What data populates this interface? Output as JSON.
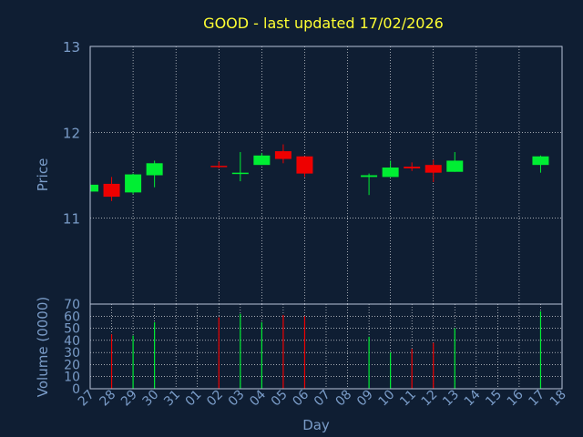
{
  "colors": {
    "background": "#0f1e33",
    "axis_text": "#7a9cc8",
    "title": "#ffff33",
    "grid": "#ffffff",
    "frame": "#b8c4d8",
    "up": "#00ee33",
    "down": "#ee0000"
  },
  "chart_data": [
    {
      "type": "candlestick",
      "title": "GOOD - last updated 17/02/2026",
      "ylabel": "Price",
      "ylim": [
        10.0,
        13.0
      ],
      "yticks": [
        11,
        12,
        13
      ],
      "grid": true,
      "x_labels": [
        "27",
        "28",
        "29",
        "30",
        "31",
        "01",
        "02",
        "03",
        "04",
        "05",
        "06",
        "07",
        "08",
        "09",
        "10",
        "11",
        "12",
        "13",
        "14",
        "15",
        "16",
        "17",
        "18"
      ],
      "candles": [
        {
          "x": "27",
          "open": 11.31,
          "close": 11.39,
          "high": 11.4,
          "low": 11.3
        },
        {
          "x": "28",
          "open": 11.4,
          "close": 11.25,
          "high": 11.48,
          "low": 11.2
        },
        {
          "x": "29",
          "open": 11.3,
          "close": 11.51,
          "high": 11.52,
          "low": 11.28
        },
        {
          "x": "30",
          "open": 11.5,
          "close": 11.64,
          "high": 11.67,
          "low": 11.36
        },
        {
          "x": "02",
          "open": 11.61,
          "close": 11.6,
          "high": 11.66,
          "low": 11.58
        },
        {
          "x": "03",
          "open": 11.52,
          "close": 11.53,
          "high": 11.77,
          "low": 11.43
        },
        {
          "x": "04",
          "open": 11.62,
          "close": 11.73,
          "high": 11.76,
          "low": 11.62
        },
        {
          "x": "05",
          "open": 11.78,
          "close": 11.69,
          "high": 11.86,
          "low": 11.64
        },
        {
          "x": "06",
          "open": 11.72,
          "close": 11.52,
          "high": 11.72,
          "low": 11.48
        },
        {
          "x": "09",
          "open": 11.48,
          "close": 11.5,
          "high": 11.52,
          "low": 11.27
        },
        {
          "x": "10",
          "open": 11.48,
          "close": 11.59,
          "high": 11.67,
          "low": 11.48
        },
        {
          "x": "11",
          "open": 11.6,
          "close": 11.58,
          "high": 11.65,
          "low": 11.55
        },
        {
          "x": "12",
          "open": 11.62,
          "close": 11.53,
          "high": 11.68,
          "low": 11.42
        },
        {
          "x": "13",
          "open": 11.54,
          "close": 11.67,
          "high": 11.77,
          "low": 11.54
        },
        {
          "x": "17",
          "open": 11.62,
          "close": 11.72,
          "high": 11.73,
          "low": 11.53
        }
      ]
    },
    {
      "type": "bar",
      "ylabel": "Volume (0000)",
      "xlabel": "Day",
      "ylim": [
        0,
        70
      ],
      "yticks": [
        0,
        10,
        20,
        30,
        40,
        50,
        60,
        70
      ],
      "grid": true,
      "categories": [
        "28",
        "29",
        "30",
        "02",
        "03",
        "04",
        "05",
        "06",
        "09",
        "10",
        "11",
        "12",
        "13",
        "17"
      ],
      "values": [
        45,
        44,
        55,
        59,
        62,
        55,
        61,
        60,
        43,
        30,
        33,
        38,
        50,
        64
      ],
      "direction": [
        "down",
        "up",
        "up",
        "down",
        "up",
        "up",
        "down",
        "down",
        "up",
        "up",
        "down",
        "down",
        "up",
        "up"
      ]
    }
  ]
}
